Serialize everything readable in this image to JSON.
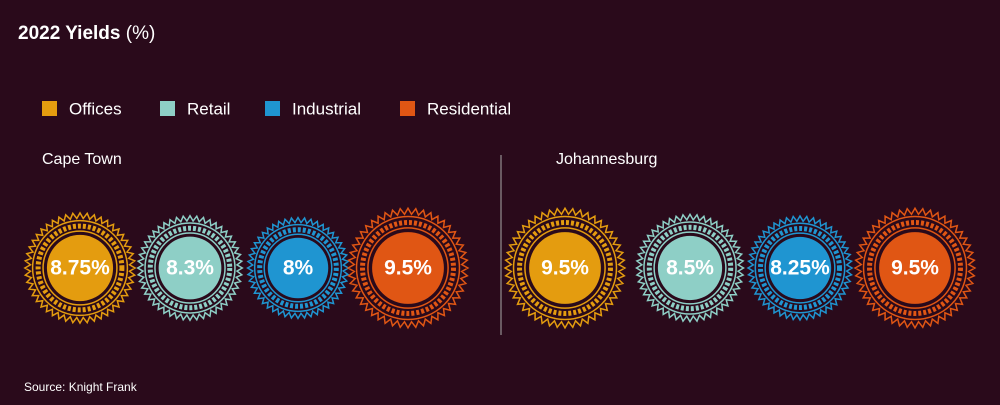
{
  "chart_data": {
    "type": "bubble",
    "title": "2022 Yields",
    "title_unit": "(%)",
    "categories": [
      "Offices",
      "Retail",
      "Industrial",
      "Residential"
    ],
    "colors": [
      "#e49c0f",
      "#8ecfc6",
      "#1f95d1",
      "#e05614"
    ],
    "series": [
      {
        "name": "Cape Town",
        "values": [
          8.75,
          8.3,
          8,
          9.5
        ],
        "value_labels": [
          "8.75%",
          "8.3%",
          "8%",
          "9.5%"
        ]
      },
      {
        "name": "Johannesburg",
        "values": [
          9.5,
          8.5,
          8.25,
          9.5
        ],
        "value_labels": [
          "9.5%",
          "8.5%",
          "8.25%",
          "9.5%"
        ]
      }
    ],
    "source": "Source: Knight Frank"
  }
}
